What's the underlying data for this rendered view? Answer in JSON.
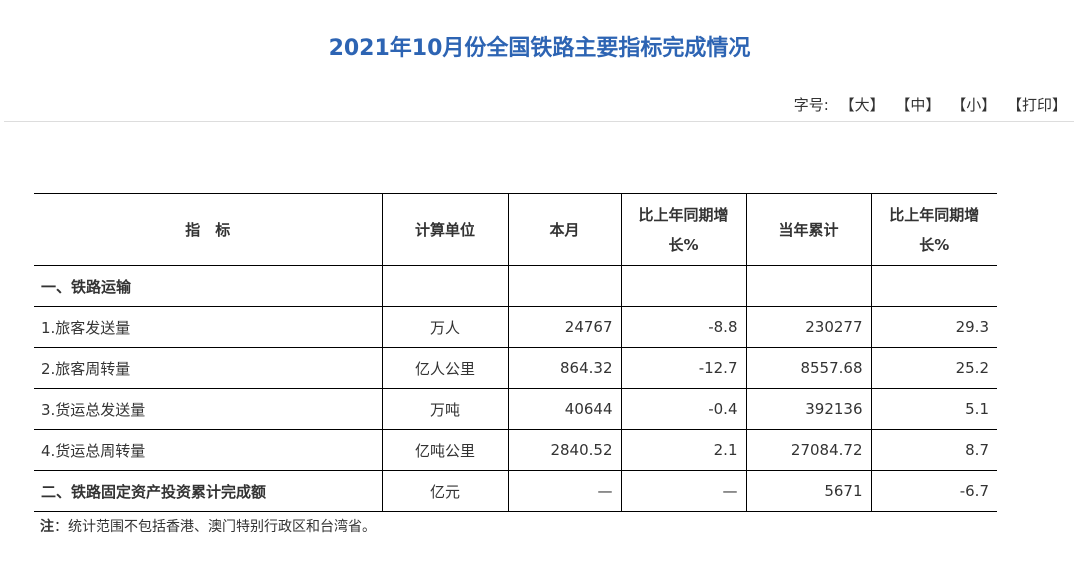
{
  "title": "2021年10月份全国铁路主要指标完成情况",
  "font_tools": {
    "label": "字号:",
    "large": "【大】",
    "medium": "【中】",
    "small": "【小】",
    "print": "【打印】"
  },
  "table": {
    "headers": {
      "indicator": "指　标",
      "unit": "计算单位",
      "this_month": "本月",
      "yoy_month_line1": "比上年同期增",
      "yoy_month_line2": "长%",
      "ytd": "当年累计",
      "yoy_ytd_line1": "比上年同期增",
      "yoy_ytd_line2": "长%"
    },
    "rows": [
      {
        "name": "一、铁路运输",
        "unit": "",
        "this_month": "",
        "yoy_month": "",
        "ytd": "",
        "yoy_ytd": ""
      },
      {
        "name": "1.旅客发送量",
        "unit": "万人",
        "this_month": "24767",
        "yoy_month": "-8.8",
        "ytd": "230277",
        "yoy_ytd": "29.3"
      },
      {
        "name": "2.旅客周转量",
        "unit": "亿人公里",
        "this_month": "864.32",
        "yoy_month": "-12.7",
        "ytd": "8557.68",
        "yoy_ytd": "25.2"
      },
      {
        "name": "3.货运总发送量",
        "unit": "万吨",
        "this_month": "40644",
        "yoy_month": "-0.4",
        "ytd": "392136",
        "yoy_ytd": "5.1"
      },
      {
        "name": "4.货运总周转量",
        "unit": "亿吨公里",
        "this_month": "2840.52",
        "yoy_month": "2.1",
        "ytd": "27084.72",
        "yoy_ytd": "8.7"
      },
      {
        "name": "二、铁路固定资产投资累计完成额",
        "unit": "亿元",
        "this_month": "—",
        "yoy_month": "—",
        "ytd": "5671",
        "yoy_ytd": "-6.7"
      }
    ]
  },
  "note": {
    "label": "注",
    "text": "：统计范围不包括香港、澳门特别行政区和台湾省。"
  }
}
